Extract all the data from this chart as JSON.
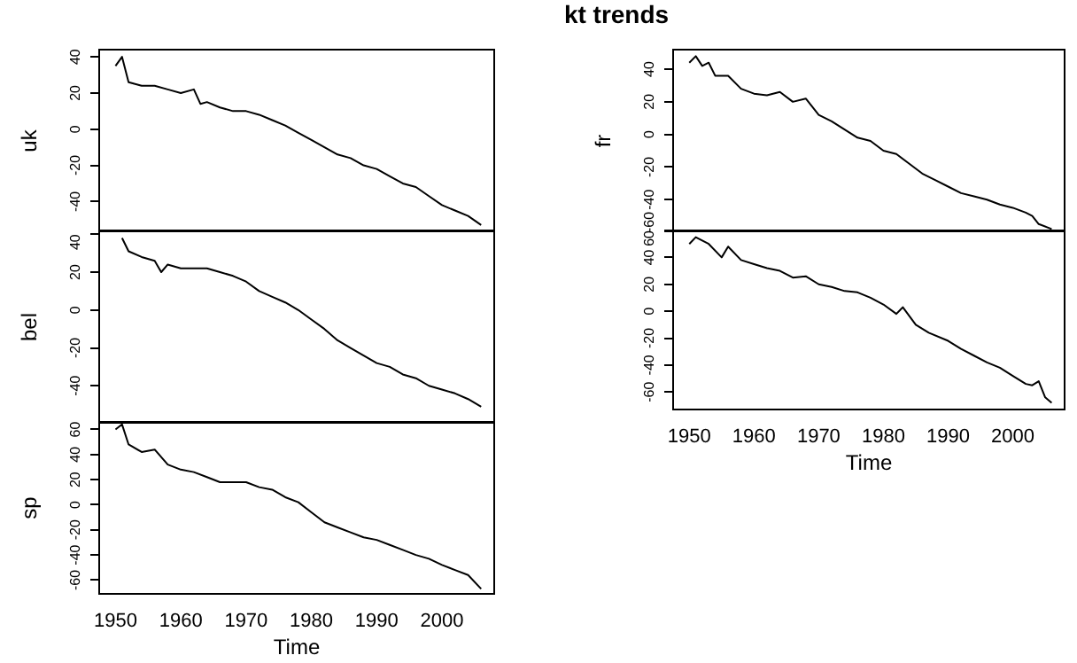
{
  "chart_data": [
    {
      "type": "line",
      "ylabel": "uk",
      "x": [
        1950,
        1951,
        1952,
        1954,
        1956,
        1958,
        1960,
        1962,
        1963,
        1964,
        1966,
        1968,
        1970,
        1972,
        1974,
        1976,
        1978,
        1980,
        1982,
        1984,
        1986,
        1988,
        1990,
        1992,
        1994,
        1996,
        1998,
        2000,
        2002,
        2004,
        2006
      ],
      "series": [
        {
          "color": "#000000",
          "values": [
            35,
            40,
            26,
            24,
            24,
            22,
            20,
            22,
            14,
            15,
            12,
            10,
            10,
            8,
            5,
            2,
            -2,
            -6,
            -10,
            -14,
            -16,
            -20,
            -22,
            -26,
            -30,
            -32,
            -37,
            -42,
            -45,
            -48,
            -53
          ]
        }
      ],
      "xlim": [
        1947.5,
        2008
      ],
      "ylim": [
        -57,
        44
      ],
      "yticks": [
        -40,
        -20,
        0,
        20,
        40
      ],
      "tick_labels": "y",
      "grid": false,
      "legend": false
    },
    {
      "type": "line",
      "ylabel": "bel",
      "x": [
        1951,
        1952,
        1954,
        1956,
        1957,
        1958,
        1960,
        1962,
        1964,
        1966,
        1968,
        1970,
        1972,
        1974,
        1976,
        1978,
        1980,
        1982,
        1984,
        1986,
        1988,
        1990,
        1992,
        1994,
        1996,
        1998,
        2000,
        2002,
        2004,
        2006
      ],
      "series": [
        {
          "color": "#000000",
          "values": [
            38,
            31,
            28,
            26,
            20,
            24,
            22,
            22,
            22,
            20,
            18,
            15,
            10,
            7,
            4,
            0,
            -5,
            -10,
            -16,
            -20,
            -24,
            -28,
            -30,
            -34,
            -36,
            -40,
            -42,
            -44,
            -47,
            -51
          ]
        }
      ],
      "xlim": [
        1947.5,
        2008
      ],
      "ylim": [
        -60,
        42
      ],
      "yticks": [
        -40,
        -20,
        0,
        20,
        40
      ],
      "tick_labels": "y",
      "grid": false,
      "legend": false
    },
    {
      "type": "line",
      "ylabel": "sp",
      "xlabel": "Time",
      "x": [
        1950,
        1951,
        1952,
        1954,
        1956,
        1958,
        1960,
        1962,
        1964,
        1966,
        1968,
        1970,
        1972,
        1974,
        1976,
        1978,
        1980,
        1982,
        1984,
        1986,
        1988,
        1990,
        1992,
        1994,
        1996,
        1998,
        2000,
        2002,
        2004,
        2006
      ],
      "series": [
        {
          "color": "#000000",
          "values": [
            60,
            64,
            48,
            42,
            44,
            32,
            28,
            26,
            22,
            18,
            18,
            18,
            14,
            12,
            6,
            2,
            -6,
            -14,
            -18,
            -22,
            -26,
            -28,
            -32,
            -36,
            -40,
            -43,
            -48,
            -52,
            -56,
            -67
          ]
        }
      ],
      "xlim": [
        1947.5,
        2008
      ],
      "ylim": [
        -71,
        66
      ],
      "xticks": [
        1950,
        1960,
        1970,
        1980,
        1990,
        2000
      ],
      "yticks": [
        -60,
        -40,
        -20,
        0,
        20,
        40,
        60
      ],
      "grid": false,
      "legend": false
    },
    {
      "type": "line",
      "title": "kt trends",
      "ylabel": "fr",
      "x": [
        1950,
        1951,
        1952,
        1953,
        1954,
        1956,
        1958,
        1960,
        1962,
        1964,
        1966,
        1968,
        1970,
        1972,
        1974,
        1976,
        1978,
        1980,
        1982,
        1984,
        1986,
        1988,
        1990,
        1992,
        1994,
        1996,
        1998,
        2000,
        2002,
        2003,
        2004,
        2006
      ],
      "series": [
        {
          "color": "#000000",
          "values": [
            44,
            48,
            42,
            44,
            36,
            36,
            28,
            25,
            24,
            26,
            20,
            22,
            12,
            8,
            3,
            -2,
            -4,
            -10,
            -12,
            -18,
            -24,
            -28,
            -32,
            -36,
            -38,
            -40,
            -43,
            -45,
            -48,
            -50,
            -55,
            -58
          ]
        }
      ],
      "xlim": [
        1947.5,
        2008
      ],
      "ylim": [
        -60,
        52
      ],
      "yticks": [
        -60,
        -40,
        -20,
        0,
        20,
        40
      ],
      "tick_labels": "y",
      "grid": false,
      "legend": false
    },
    {
      "type": "line",
      "xlabel": "Time",
      "x": [
        1950,
        1951,
        1953,
        1955,
        1956,
        1958,
        1960,
        1962,
        1964,
        1966,
        1968,
        1970,
        1972,
        1974,
        1976,
        1978,
        1980,
        1982,
        1983,
        1985,
        1987,
        1990,
        1992,
        1994,
        1996,
        1998,
        2000,
        2002,
        2003,
        2004,
        2005,
        2006
      ],
      "series": [
        {
          "color": "#000000",
          "values": [
            50,
            55,
            50,
            40,
            48,
            38,
            35,
            32,
            30,
            25,
            26,
            20,
            18,
            15,
            14,
            10,
            5,
            -2,
            3,
            -10,
            -16,
            -22,
            -28,
            -33,
            -38,
            -42,
            -48,
            -54,
            -55,
            -52,
            -64,
            -68
          ]
        }
      ],
      "xlim": [
        1947.5,
        2008
      ],
      "ylim": [
        -73,
        60
      ],
      "xticks": [
        1950,
        1960,
        1970,
        1980,
        1990,
        2000
      ],
      "yticks": [
        -60,
        -40,
        -20,
        0,
        20,
        40,
        60
      ],
      "grid": false,
      "legend": false
    }
  ]
}
